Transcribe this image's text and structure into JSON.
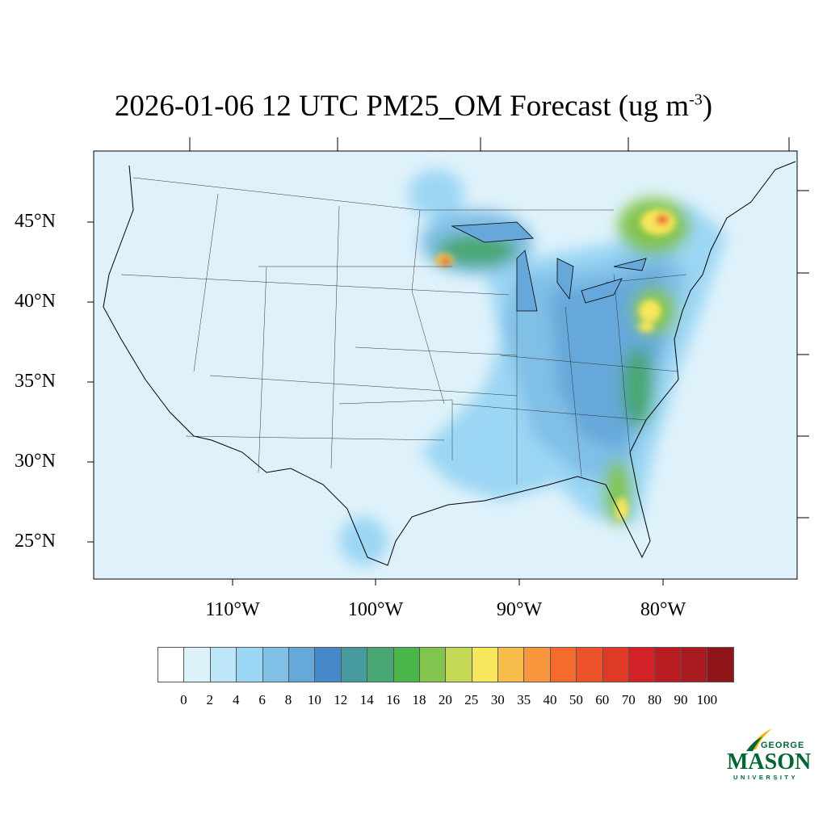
{
  "title": {
    "text": "2026-01-06 12 UTC PM25_OM Forecast (ug m",
    "exp": "-3",
    "close": ")"
  },
  "map": {
    "region": "Continental United States",
    "projection": "Lambert conformal",
    "lat_labels": [
      "45°N",
      "40°N",
      "35°N",
      "30°N",
      "25°N"
    ],
    "lon_labels": [
      "110°W",
      "100°W",
      "90°W",
      "80°W"
    ],
    "background_color": "#dff2fb",
    "hotspots": [
      "Minnesota/Wisconsin",
      "Upstate New York",
      "Mid-Atlantic",
      "Carolinas/Georgia",
      "Florida"
    ]
  },
  "colorbar": {
    "labels": [
      "0",
      "2",
      "4",
      "6",
      "8",
      "10",
      "12",
      "14",
      "16",
      "18",
      "20",
      "25",
      "30",
      "35",
      "40",
      "50",
      "60",
      "70",
      "80",
      "90",
      "100"
    ],
    "colors": [
      "#ffffff",
      "#ddf1fb",
      "#bde6f8",
      "#9bd6f4",
      "#80bfe6",
      "#66a8da",
      "#4689c8",
      "#479a9e",
      "#48a773",
      "#4ab548",
      "#83c44e",
      "#c5d957",
      "#f8e65c",
      "#f8bc4a",
      "#f7963c",
      "#f46b2b",
      "#ec5229",
      "#df3a26",
      "#d32128",
      "#b91c23",
      "#a91b20",
      "#8f1518"
    ]
  },
  "logo": {
    "line1": "GEORGE",
    "line2": "MASON",
    "line3": "UNIVERSITY",
    "green": "#006633",
    "gold": "#f2b705"
  }
}
